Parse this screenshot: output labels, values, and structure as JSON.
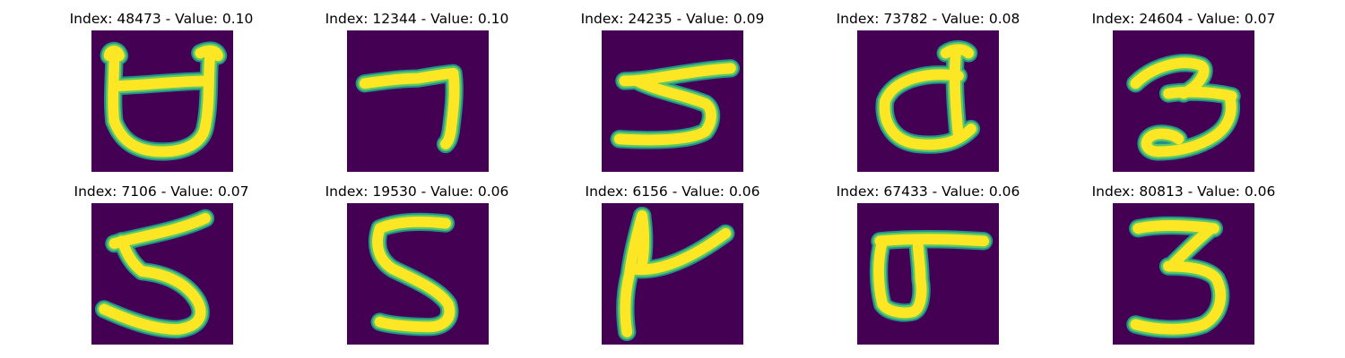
{
  "colors": {
    "background": "#440154",
    "stroke_core": "#fde725",
    "stroke_mid": "#5ec962",
    "stroke_edge": "#21918c",
    "page": "#ffffff"
  },
  "panels": [
    {
      "title": "Index: 48473 - Value: 0.10",
      "index": 48473,
      "value": 0.1,
      "glyph": "8-open"
    },
    {
      "title": "Index: 12344 - Value: 0.10",
      "index": 12344,
      "value": 0.1,
      "glyph": "7"
    },
    {
      "title": "Index: 24235 - Value: 0.09",
      "index": 24235,
      "value": 0.09,
      "glyph": "5-flat"
    },
    {
      "title": "Index: 73782 - Value: 0.08",
      "index": 73782,
      "value": 0.08,
      "glyph": "d-loop"
    },
    {
      "title": "Index: 24604 - Value: 0.07",
      "index": 24604,
      "value": 0.07,
      "glyph": "3"
    },
    {
      "title": "Index: 7106 - Value: 0.07",
      "index": 7106,
      "value": 0.07,
      "glyph": "5"
    },
    {
      "title": "Index: 19530 - Value: 0.06",
      "index": 19530,
      "value": 0.06,
      "glyph": "5-s"
    },
    {
      "title": "Index: 6156 - Value: 0.06",
      "index": 6156,
      "value": 0.06,
      "glyph": "4-open"
    },
    {
      "title": "Index: 67433 - Value: 0.06",
      "index": 67433,
      "value": 0.06,
      "glyph": "d-bar"
    },
    {
      "title": "Index: 80813 - Value: 0.06",
      "index": 80813,
      "value": 0.06,
      "glyph": "3-b"
    }
  ]
}
